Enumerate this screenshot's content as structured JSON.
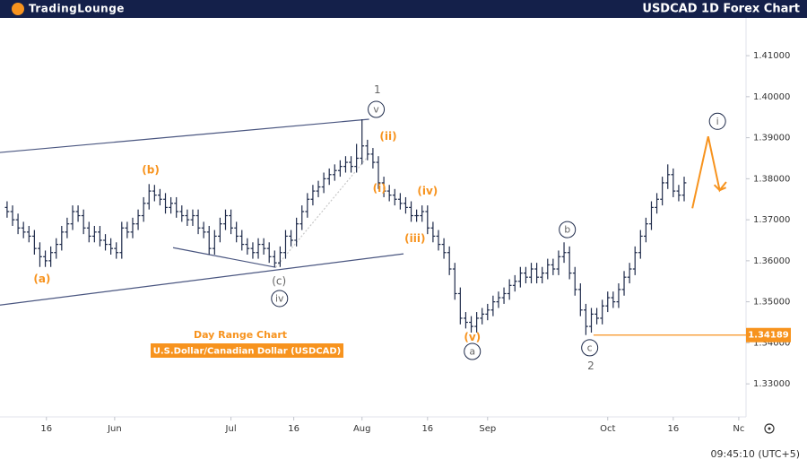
{
  "chart_data": {
    "type": "ohlc",
    "logo": "TradingLounge",
    "title": "USDCAD 1D Forex Chart",
    "subtitle": "Day Range Chart",
    "instrument": "U.S.Dollar/Canadian Dollar (USDCAD)",
    "time": "09:45:10 (UTC+5)",
    "color": "#1e2a4a",
    "xlim": [
      -1.3,
      135
    ],
    "ylim": [
      1.3226,
      1.4192
    ],
    "yticks": [
      {
        "value": 1.33,
        "label": "1.33000"
      },
      {
        "value": 1.34,
        "label": "1.34000"
      },
      {
        "value": 1.35,
        "label": "1.35000"
      },
      {
        "value": 1.36,
        "label": "1.36000"
      },
      {
        "value": 1.37,
        "label": "1.37000"
      },
      {
        "value": 1.38,
        "label": "1.38000"
      },
      {
        "value": 1.39,
        "label": "1.39000"
      },
      {
        "value": 1.4,
        "label": "1.40000"
      },
      {
        "value": 1.41,
        "label": "1.41000"
      }
    ],
    "xticks": [
      {
        "value": 7.2,
        "label": "16"
      },
      {
        "value": 19.7,
        "label": "Jun"
      },
      {
        "value": 41,
        "label": "Jul"
      },
      {
        "value": 52.5,
        "label": "16"
      },
      {
        "value": 65,
        "label": "Aug"
      },
      {
        "value": 77,
        "label": "16"
      },
      {
        "value": 88,
        "label": "Sep"
      },
      {
        "value": 110,
        "label": "Oct"
      },
      {
        "value": 122,
        "label": "16"
      },
      {
        "value": 134,
        "label": "Nc"
      }
    ],
    "ohlc": [
      [
        1.373,
        1.3745,
        1.3705,
        1.372
      ],
      [
        1.372,
        1.3735,
        1.3685,
        1.37
      ],
      [
        1.37,
        1.3715,
        1.3665,
        1.368
      ],
      [
        1.368,
        1.3695,
        1.3655,
        1.367
      ],
      [
        1.367,
        1.3685,
        1.3645,
        1.366
      ],
      [
        1.366,
        1.3675,
        1.3615,
        1.363
      ],
      [
        1.363,
        1.3645,
        1.3585,
        1.361
      ],
      [
        1.361,
        1.3625,
        1.3585,
        1.36
      ],
      [
        1.36,
        1.3635,
        1.3585,
        1.362
      ],
      [
        1.362,
        1.3655,
        1.3605,
        1.364
      ],
      [
        1.364,
        1.3685,
        1.3625,
        1.367
      ],
      [
        1.367,
        1.3705,
        1.3655,
        1.369
      ],
      [
        1.369,
        1.3735,
        1.3675,
        1.372
      ],
      [
        1.372,
        1.3735,
        1.3695,
        1.371
      ],
      [
        1.371,
        1.3725,
        1.3665,
        1.368
      ],
      [
        1.368,
        1.3695,
        1.3645,
        1.366
      ],
      [
        1.366,
        1.3685,
        1.3645,
        1.367
      ],
      [
        1.367,
        1.3685,
        1.3635,
        1.365
      ],
      [
        1.365,
        1.3665,
        1.3625,
        1.364
      ],
      [
        1.364,
        1.3655,
        1.3615,
        1.363
      ],
      [
        1.363,
        1.3645,
        1.3605,
        1.362
      ],
      [
        1.362,
        1.3695,
        1.3605,
        1.368
      ],
      [
        1.368,
        1.3695,
        1.3655,
        1.367
      ],
      [
        1.367,
        1.3705,
        1.3655,
        1.369
      ],
      [
        1.369,
        1.3725,
        1.3675,
        1.371
      ],
      [
        1.371,
        1.3755,
        1.3695,
        1.374
      ],
      [
        1.374,
        1.3787,
        1.3725,
        1.377
      ],
      [
        1.377,
        1.3785,
        1.3745,
        1.376
      ],
      [
        1.376,
        1.3775,
        1.3735,
        1.375
      ],
      [
        1.375,
        1.3765,
        1.3715,
        1.373
      ],
      [
        1.373,
        1.3755,
        1.3715,
        1.374
      ],
      [
        1.374,
        1.3755,
        1.3705,
        1.372
      ],
      [
        1.372,
        1.3735,
        1.3695,
        1.371
      ],
      [
        1.371,
        1.3725,
        1.3685,
        1.37
      ],
      [
        1.37,
        1.3725,
        1.3685,
        1.371
      ],
      [
        1.371,
        1.3725,
        1.3665,
        1.368
      ],
      [
        1.368,
        1.3695,
        1.3655,
        1.367
      ],
      [
        1.367,
        1.3685,
        1.3615,
        1.363
      ],
      [
        1.363,
        1.3675,
        1.3615,
        1.366
      ],
      [
        1.366,
        1.3705,
        1.3645,
        1.369
      ],
      [
        1.369,
        1.3725,
        1.3675,
        1.371
      ],
      [
        1.371,
        1.3725,
        1.3665,
        1.368
      ],
      [
        1.368,
        1.3695,
        1.3645,
        1.366
      ],
      [
        1.366,
        1.3675,
        1.3625,
        1.364
      ],
      [
        1.364,
        1.3655,
        1.3615,
        1.363
      ],
      [
        1.363,
        1.3645,
        1.3605,
        1.362
      ],
      [
        1.362,
        1.3655,
        1.3605,
        1.364
      ],
      [
        1.364,
        1.3655,
        1.3615,
        1.363
      ],
      [
        1.363,
        1.3645,
        1.3595,
        1.361
      ],
      [
        1.361,
        1.3625,
        1.3585,
        1.3595
      ],
      [
        1.3595,
        1.3635,
        1.3585,
        1.362
      ],
      [
        1.362,
        1.3675,
        1.3605,
        1.366
      ],
      [
        1.366,
        1.3675,
        1.3635,
        1.365
      ],
      [
        1.365,
        1.3705,
        1.3635,
        1.369
      ],
      [
        1.369,
        1.3735,
        1.3675,
        1.372
      ],
      [
        1.372,
        1.3765,
        1.3705,
        1.375
      ],
      [
        1.375,
        1.3785,
        1.3735,
        1.377
      ],
      [
        1.377,
        1.3795,
        1.3755,
        1.378
      ],
      [
        1.378,
        1.3815,
        1.3765,
        1.38
      ],
      [
        1.38,
        1.3825,
        1.3785,
        1.381
      ],
      [
        1.381,
        1.3835,
        1.3795,
        1.382
      ],
      [
        1.382,
        1.3845,
        1.3805,
        1.383
      ],
      [
        1.383,
        1.3855,
        1.3815,
        1.384
      ],
      [
        1.384,
        1.3855,
        1.3815,
        1.383
      ],
      [
        1.383,
        1.3885,
        1.3815,
        1.385
      ],
      [
        1.385,
        1.3945,
        1.3835,
        1.388
      ],
      [
        1.388,
        1.3895,
        1.3845,
        1.386
      ],
      [
        1.386,
        1.3875,
        1.3825,
        1.384
      ],
      [
        1.384,
        1.3855,
        1.3775,
        1.379
      ],
      [
        1.379,
        1.3805,
        1.3755,
        1.377
      ],
      [
        1.377,
        1.3785,
        1.3745,
        1.376
      ],
      [
        1.376,
        1.3775,
        1.3735,
        1.375
      ],
      [
        1.375,
        1.3765,
        1.3725,
        1.374
      ],
      [
        1.374,
        1.3755,
        1.3715,
        1.373
      ],
      [
        1.373,
        1.3745,
        1.3695,
        1.371
      ],
      [
        1.371,
        1.3725,
        1.3695,
        1.371
      ],
      [
        1.371,
        1.3735,
        1.3695,
        1.372
      ],
      [
        1.372,
        1.3735,
        1.3665,
        1.368
      ],
      [
        1.368,
        1.3695,
        1.3645,
        1.366
      ],
      [
        1.366,
        1.3675,
        1.3625,
        1.364
      ],
      [
        1.364,
        1.3655,
        1.3605,
        1.362
      ],
      [
        1.362,
        1.3635,
        1.3565,
        1.358
      ],
      [
        1.358,
        1.3595,
        1.3505,
        1.352
      ],
      [
        1.352,
        1.3535,
        1.3445,
        1.346
      ],
      [
        1.346,
        1.3475,
        1.3435,
        1.345
      ],
      [
        1.345,
        1.3465,
        1.3425,
        1.344
      ],
      [
        1.344,
        1.3475,
        1.3425,
        1.346
      ],
      [
        1.346,
        1.3485,
        1.3445,
        1.347
      ],
      [
        1.347,
        1.3495,
        1.3455,
        1.348
      ],
      [
        1.348,
        1.3515,
        1.3465,
        1.35
      ],
      [
        1.35,
        1.3525,
        1.3485,
        1.351
      ],
      [
        1.351,
        1.3535,
        1.3495,
        1.352
      ],
      [
        1.352,
        1.3555,
        1.3505,
        1.354
      ],
      [
        1.354,
        1.3565,
        1.3525,
        1.355
      ],
      [
        1.355,
        1.3585,
        1.3535,
        1.357
      ],
      [
        1.357,
        1.3585,
        1.3545,
        1.356
      ],
      [
        1.356,
        1.3595,
        1.3545,
        1.358
      ],
      [
        1.358,
        1.3595,
        1.3545,
        1.356
      ],
      [
        1.356,
        1.3585,
        1.3545,
        1.357
      ],
      [
        1.357,
        1.3605,
        1.3555,
        1.359
      ],
      [
        1.359,
        1.3605,
        1.3565,
        1.358
      ],
      [
        1.358,
        1.3625,
        1.3565,
        1.361
      ],
      [
        1.361,
        1.3645,
        1.3595,
        1.362
      ],
      [
        1.362,
        1.3635,
        1.3555,
        1.357
      ],
      [
        1.357,
        1.3585,
        1.3515,
        1.353
      ],
      [
        1.353,
        1.3545,
        1.3465,
        1.348
      ],
      [
        1.348,
        1.3495,
        1.3419,
        1.344
      ],
      [
        1.344,
        1.3485,
        1.3425,
        1.347
      ],
      [
        1.347,
        1.3485,
        1.3445,
        1.346
      ],
      [
        1.346,
        1.3505,
        1.3445,
        1.349
      ],
      [
        1.349,
        1.3525,
        1.3475,
        1.351
      ],
      [
        1.351,
        1.3525,
        1.3485,
        1.35
      ],
      [
        1.35,
        1.3545,
        1.3485,
        1.353
      ],
      [
        1.353,
        1.3575,
        1.3515,
        1.356
      ],
      [
        1.356,
        1.3595,
        1.3545,
        1.358
      ],
      [
        1.358,
        1.3635,
        1.3565,
        1.362
      ],
      [
        1.362,
        1.3675,
        1.3605,
        1.366
      ],
      [
        1.366,
        1.3705,
        1.3645,
        1.369
      ],
      [
        1.369,
        1.3745,
        1.3675,
        1.373
      ],
      [
        1.373,
        1.3765,
        1.3715,
        1.375
      ],
      [
        1.375,
        1.3805,
        1.3735,
        1.379
      ],
      [
        1.379,
        1.3835,
        1.3775,
        1.381
      ],
      [
        1.381,
        1.3825,
        1.3755,
        1.377
      ],
      [
        1.377,
        1.3785,
        1.3745,
        1.376
      ],
      [
        1.376,
        1.3805,
        1.3745,
        1.379
      ]
    ],
    "lines": [
      {
        "points": [
          [
            -1.3,
            1.3864
          ],
          [
            66.3,
            1.3945
          ]
        ],
        "color": "#4a5680",
        "dashed": false
      },
      {
        "points": [
          [
            -1.3,
            1.3492
          ],
          [
            72.6,
            1.3617
          ]
        ],
        "color": "#4a5680",
        "dashed": false
      },
      {
        "points": [
          [
            30.4,
            1.3632
          ],
          [
            49.2,
            1.3584
          ]
        ],
        "color": "#4a5680",
        "dashed": false
      },
      {
        "points": [
          [
            49.2,
            1.3584
          ],
          [
            66,
            1.3853
          ]
        ],
        "color": "#c8c8c8",
        "dashed": true
      }
    ],
    "projection": {
      "points": [
        [
          125.5,
          1.3728
        ],
        [
          128.4,
          1.3903
        ],
        [
          130.5,
          1.3772
        ],
        [
          131.7,
          1.3792
        ]
      ],
      "color": "#f7931e"
    },
    "level": 1.34189,
    "level_start": 107.4,
    "level_color": "#f7931e",
    "annotations": [
      {
        "text": "1",
        "x": 67.8,
        "y": 1.4017,
        "color": "#666666",
        "circled": false
      },
      {
        "text": "v",
        "x": 67.6,
        "y": 1.3969,
        "color": "#666666",
        "circled": true
      },
      {
        "text": "(ii)",
        "x": 69.8,
        "y": 1.3903,
        "color": "#f7931e",
        "circled": false
      },
      {
        "text": "(i)",
        "x": 68.2,
        "y": 1.3777,
        "color": "#f7931e",
        "circled": false
      },
      {
        "text": "(iv)",
        "x": 77,
        "y": 1.377,
        "color": "#f7931e",
        "circled": false
      },
      {
        "text": "(iii)",
        "x": 74.7,
        "y": 1.3654,
        "color": "#f7931e",
        "circled": false
      },
      {
        "text": "(b)",
        "x": 26.3,
        "y": 1.3822,
        "color": "#f7931e",
        "circled": false
      },
      {
        "text": "(a)",
        "x": 6.4,
        "y": 1.3556,
        "color": "#f7931e",
        "circled": false
      },
      {
        "text": "(c)",
        "x": 49.8,
        "y": 1.3551,
        "color": "#666666",
        "circled": false
      },
      {
        "text": "iv",
        "x": 49.9,
        "y": 1.3508,
        "color": "#666666",
        "circled": true
      },
      {
        "text": "(v)",
        "x": 85.2,
        "y": 1.3414,
        "color": "#f7931e",
        "circled": false
      },
      {
        "text": "a",
        "x": 85.2,
        "y": 1.3379,
        "color": "#666666",
        "circled": true
      },
      {
        "text": "b",
        "x": 102.6,
        "y": 1.3676,
        "color": "#666666",
        "circled": true
      },
      {
        "text": "c",
        "x": 106.7,
        "y": 1.3388,
        "color": "#666666",
        "circled": true
      },
      {
        "text": "2",
        "x": 106.9,
        "y": 1.3344,
        "color": "#666666",
        "circled": false
      },
      {
        "text": "i",
        "x": 130.1,
        "y": 1.394,
        "color": "#666666",
        "circled": true
      }
    ]
  }
}
